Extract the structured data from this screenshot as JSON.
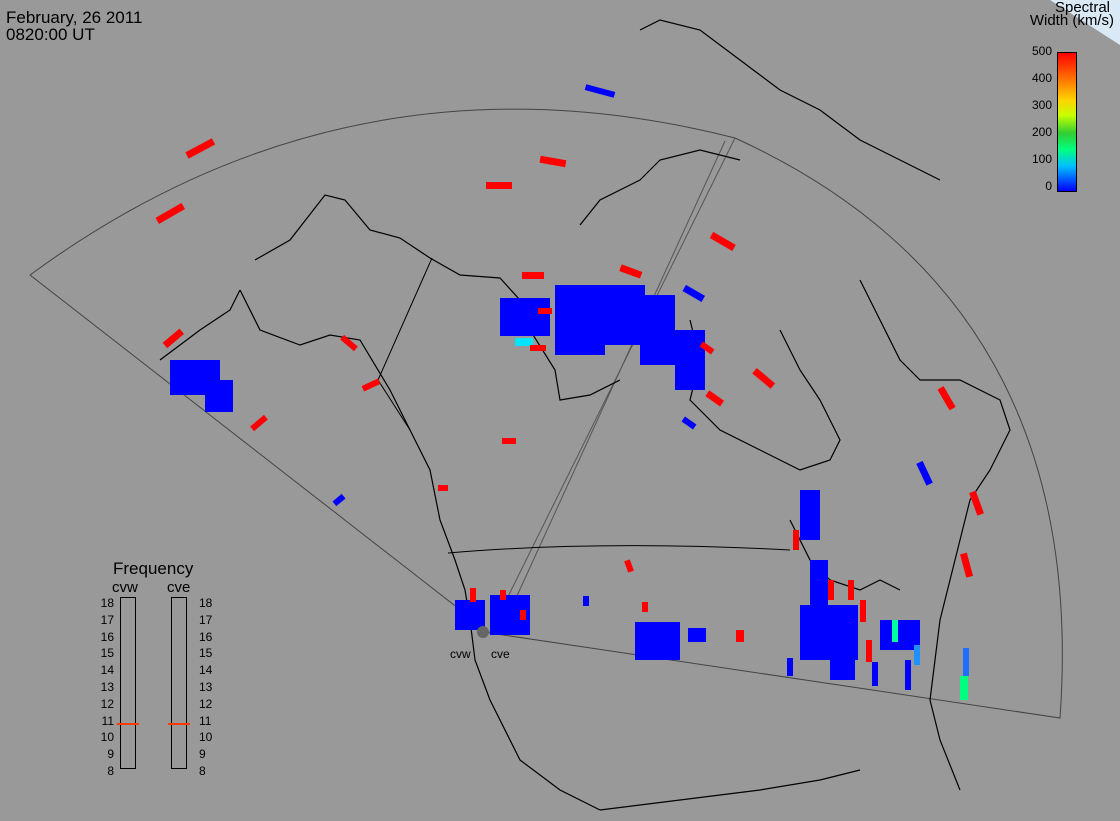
{
  "header": {
    "date": "February, 26 2011",
    "time": "0820:00 UT"
  },
  "legend": {
    "title_line1": "Spectral",
    "title_line2": "Width (km/s)",
    "ticks": [
      "500",
      "400",
      "300",
      "200",
      "100",
      "0"
    ],
    "colors": {
      "low": "#0000ff",
      "mid": "#00ff7f",
      "high": "#ff0000"
    }
  },
  "frequency_panel": {
    "title": "Frequency",
    "cvw_label": "cvw",
    "cve_label": "cve",
    "ticks": [
      "18",
      "17",
      "16",
      "15",
      "14",
      "13",
      "12",
      "11",
      "10",
      "9",
      "8"
    ],
    "cvw_value_mhz": 10.9,
    "cve_value_mhz": 10.9,
    "marker_color": "#ff3b00"
  },
  "stations": {
    "cvw": "cvw",
    "cve": "cve"
  },
  "map": {
    "background": "#999999",
    "coast_color": "#000000",
    "fov_color": "#444444"
  }
}
